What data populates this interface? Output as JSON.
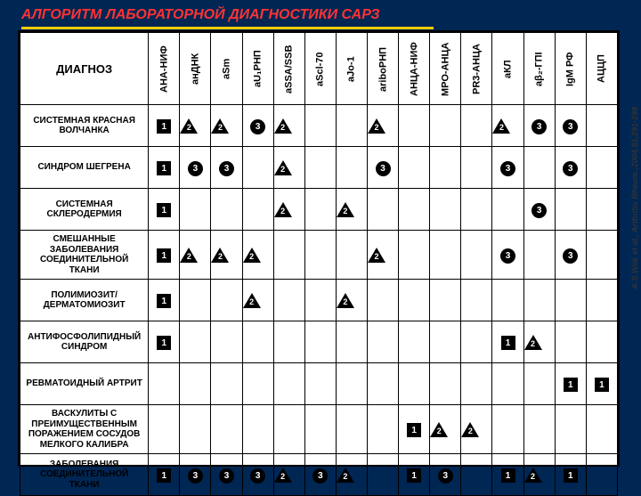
{
  "title": "АЛГОРИТМ  ЛАБОРАТОРНОЙ  ДИАГНОСТИКИ САРЗ",
  "corner": "ДИАГНОЗ",
  "citation": "A.S.Wiik et al., Arthritis Rheum.,2004,51,291-298",
  "columns": [
    "АНА-НИФ",
    "анДНК",
    "aSm",
    "aU₁РНП",
    "aSSA/SSB",
    "aScl-70",
    "aJo-1",
    "ariboРНП",
    "АНЦА-НИФ",
    "МРО-АНЦА",
    "PR3-АНЦА",
    "аКЛ",
    "аβ₂-ГПI",
    "IgM РФ",
    "АЦЦП"
  ],
  "rows": [
    {
      "label": "СИСТЕМНАЯ КРАСНАЯ ВОЛЧАНКА",
      "cells": [
        {
          "t": "sq",
          "v": "1"
        },
        {
          "t": "tr",
          "v": "2"
        },
        {
          "t": "tr",
          "v": "2"
        },
        {
          "t": "ci",
          "v": "3"
        },
        {
          "t": "tr",
          "v": "2"
        },
        null,
        null,
        {
          "t": "tr",
          "v": "2"
        },
        null,
        null,
        null,
        {
          "t": "tr",
          "v": "2"
        },
        {
          "t": "ci",
          "v": "3"
        },
        {
          "t": "ci",
          "v": "3"
        },
        null
      ]
    },
    {
      "label": "СИНДРОМ ШЕГРЕНА",
      "cells": [
        {
          "t": "sq",
          "v": "1"
        },
        {
          "t": "ci",
          "v": "3"
        },
        {
          "t": "ci",
          "v": "3"
        },
        null,
        {
          "t": "tr",
          "v": "2"
        },
        null,
        null,
        {
          "t": "ci",
          "v": "3"
        },
        null,
        null,
        null,
        {
          "t": "ci",
          "v": "3"
        },
        null,
        {
          "t": "ci",
          "v": "3"
        },
        null
      ]
    },
    {
      "label": "СИСТЕМНАЯ СКЛЕРОДЕРМИЯ",
      "cells": [
        {
          "t": "sq",
          "v": "1"
        },
        null,
        null,
        null,
        {
          "t": "tr",
          "v": "2"
        },
        null,
        {
          "t": "tr",
          "v": "2"
        },
        null,
        null,
        null,
        null,
        null,
        {
          "t": "ci",
          "v": "3"
        },
        null,
        null
      ]
    },
    {
      "label": "СМЕШАННЫЕ ЗАБОЛЕВАНИЯ СОЕДИНИТЕЛЬНОЙ ТКАНИ",
      "cells": [
        {
          "t": "sq",
          "v": "1"
        },
        {
          "t": "tr",
          "v": "2"
        },
        {
          "t": "tr",
          "v": "2"
        },
        {
          "t": "tr",
          "v": "2"
        },
        null,
        null,
        null,
        {
          "t": "tr",
          "v": "2"
        },
        null,
        null,
        null,
        {
          "t": "ci",
          "v": "3"
        },
        null,
        {
          "t": "ci",
          "v": "3"
        },
        null
      ]
    },
    {
      "label": "ПОЛИМИОЗИТ/ ДЕРМАТОМИОЗИТ",
      "cells": [
        {
          "t": "sq",
          "v": "1"
        },
        null,
        null,
        {
          "t": "tr",
          "v": "2"
        },
        null,
        null,
        {
          "t": "tr",
          "v": "2"
        },
        null,
        null,
        null,
        null,
        null,
        null,
        null,
        null
      ]
    },
    {
      "label": "АНТИФОСФОЛИПИДНЫЙ СИНДРОМ",
      "cells": [
        {
          "t": "sq",
          "v": "1"
        },
        null,
        null,
        null,
        null,
        null,
        null,
        null,
        null,
        null,
        null,
        {
          "t": "sq",
          "v": "1"
        },
        {
          "t": "tr",
          "v": "2"
        },
        null,
        null
      ]
    },
    {
      "label": "РЕВМАТОИДНЫЙ АРТРИТ",
      "cells": [
        null,
        null,
        null,
        null,
        null,
        null,
        null,
        null,
        null,
        null,
        null,
        null,
        null,
        {
          "t": "sq",
          "v": "1"
        },
        {
          "t": "sq",
          "v": "1"
        }
      ]
    },
    {
      "label": "ВАСКУЛИТЫ С ПРЕИМУЩЕСТВЕННЫМ ПОРАЖЕНИЕМ СОСУДОВ МЕЛКОГО КАЛИБРА",
      "cells": [
        null,
        null,
        null,
        null,
        null,
        null,
        null,
        null,
        {
          "t": "sq",
          "v": "1"
        },
        {
          "t": "tr",
          "v": "2"
        },
        {
          "t": "tr",
          "v": "2"
        },
        null,
        null,
        null,
        null
      ]
    },
    {
      "label": "ЗАБОЛЕВАНИЯ СОЕДИНИТЕЛЬНОЙ ТКАНИ",
      "cells": [
        {
          "t": "sq",
          "v": "1"
        },
        {
          "t": "ci",
          "v": "3"
        },
        {
          "t": "ci",
          "v": "3"
        },
        {
          "t": "ci",
          "v": "3"
        },
        {
          "t": "tr",
          "v": "2"
        },
        {
          "t": "ci",
          "v": "3"
        },
        {
          "t": "tr",
          "v": "2"
        },
        null,
        {
          "t": "sq",
          "v": "1"
        },
        {
          "t": "ci",
          "v": "3"
        },
        null,
        {
          "t": "sq",
          "v": "1"
        },
        {
          "t": "tr",
          "v": "2"
        },
        {
          "t": "sq",
          "v": "1"
        },
        null
      ]
    }
  ]
}
